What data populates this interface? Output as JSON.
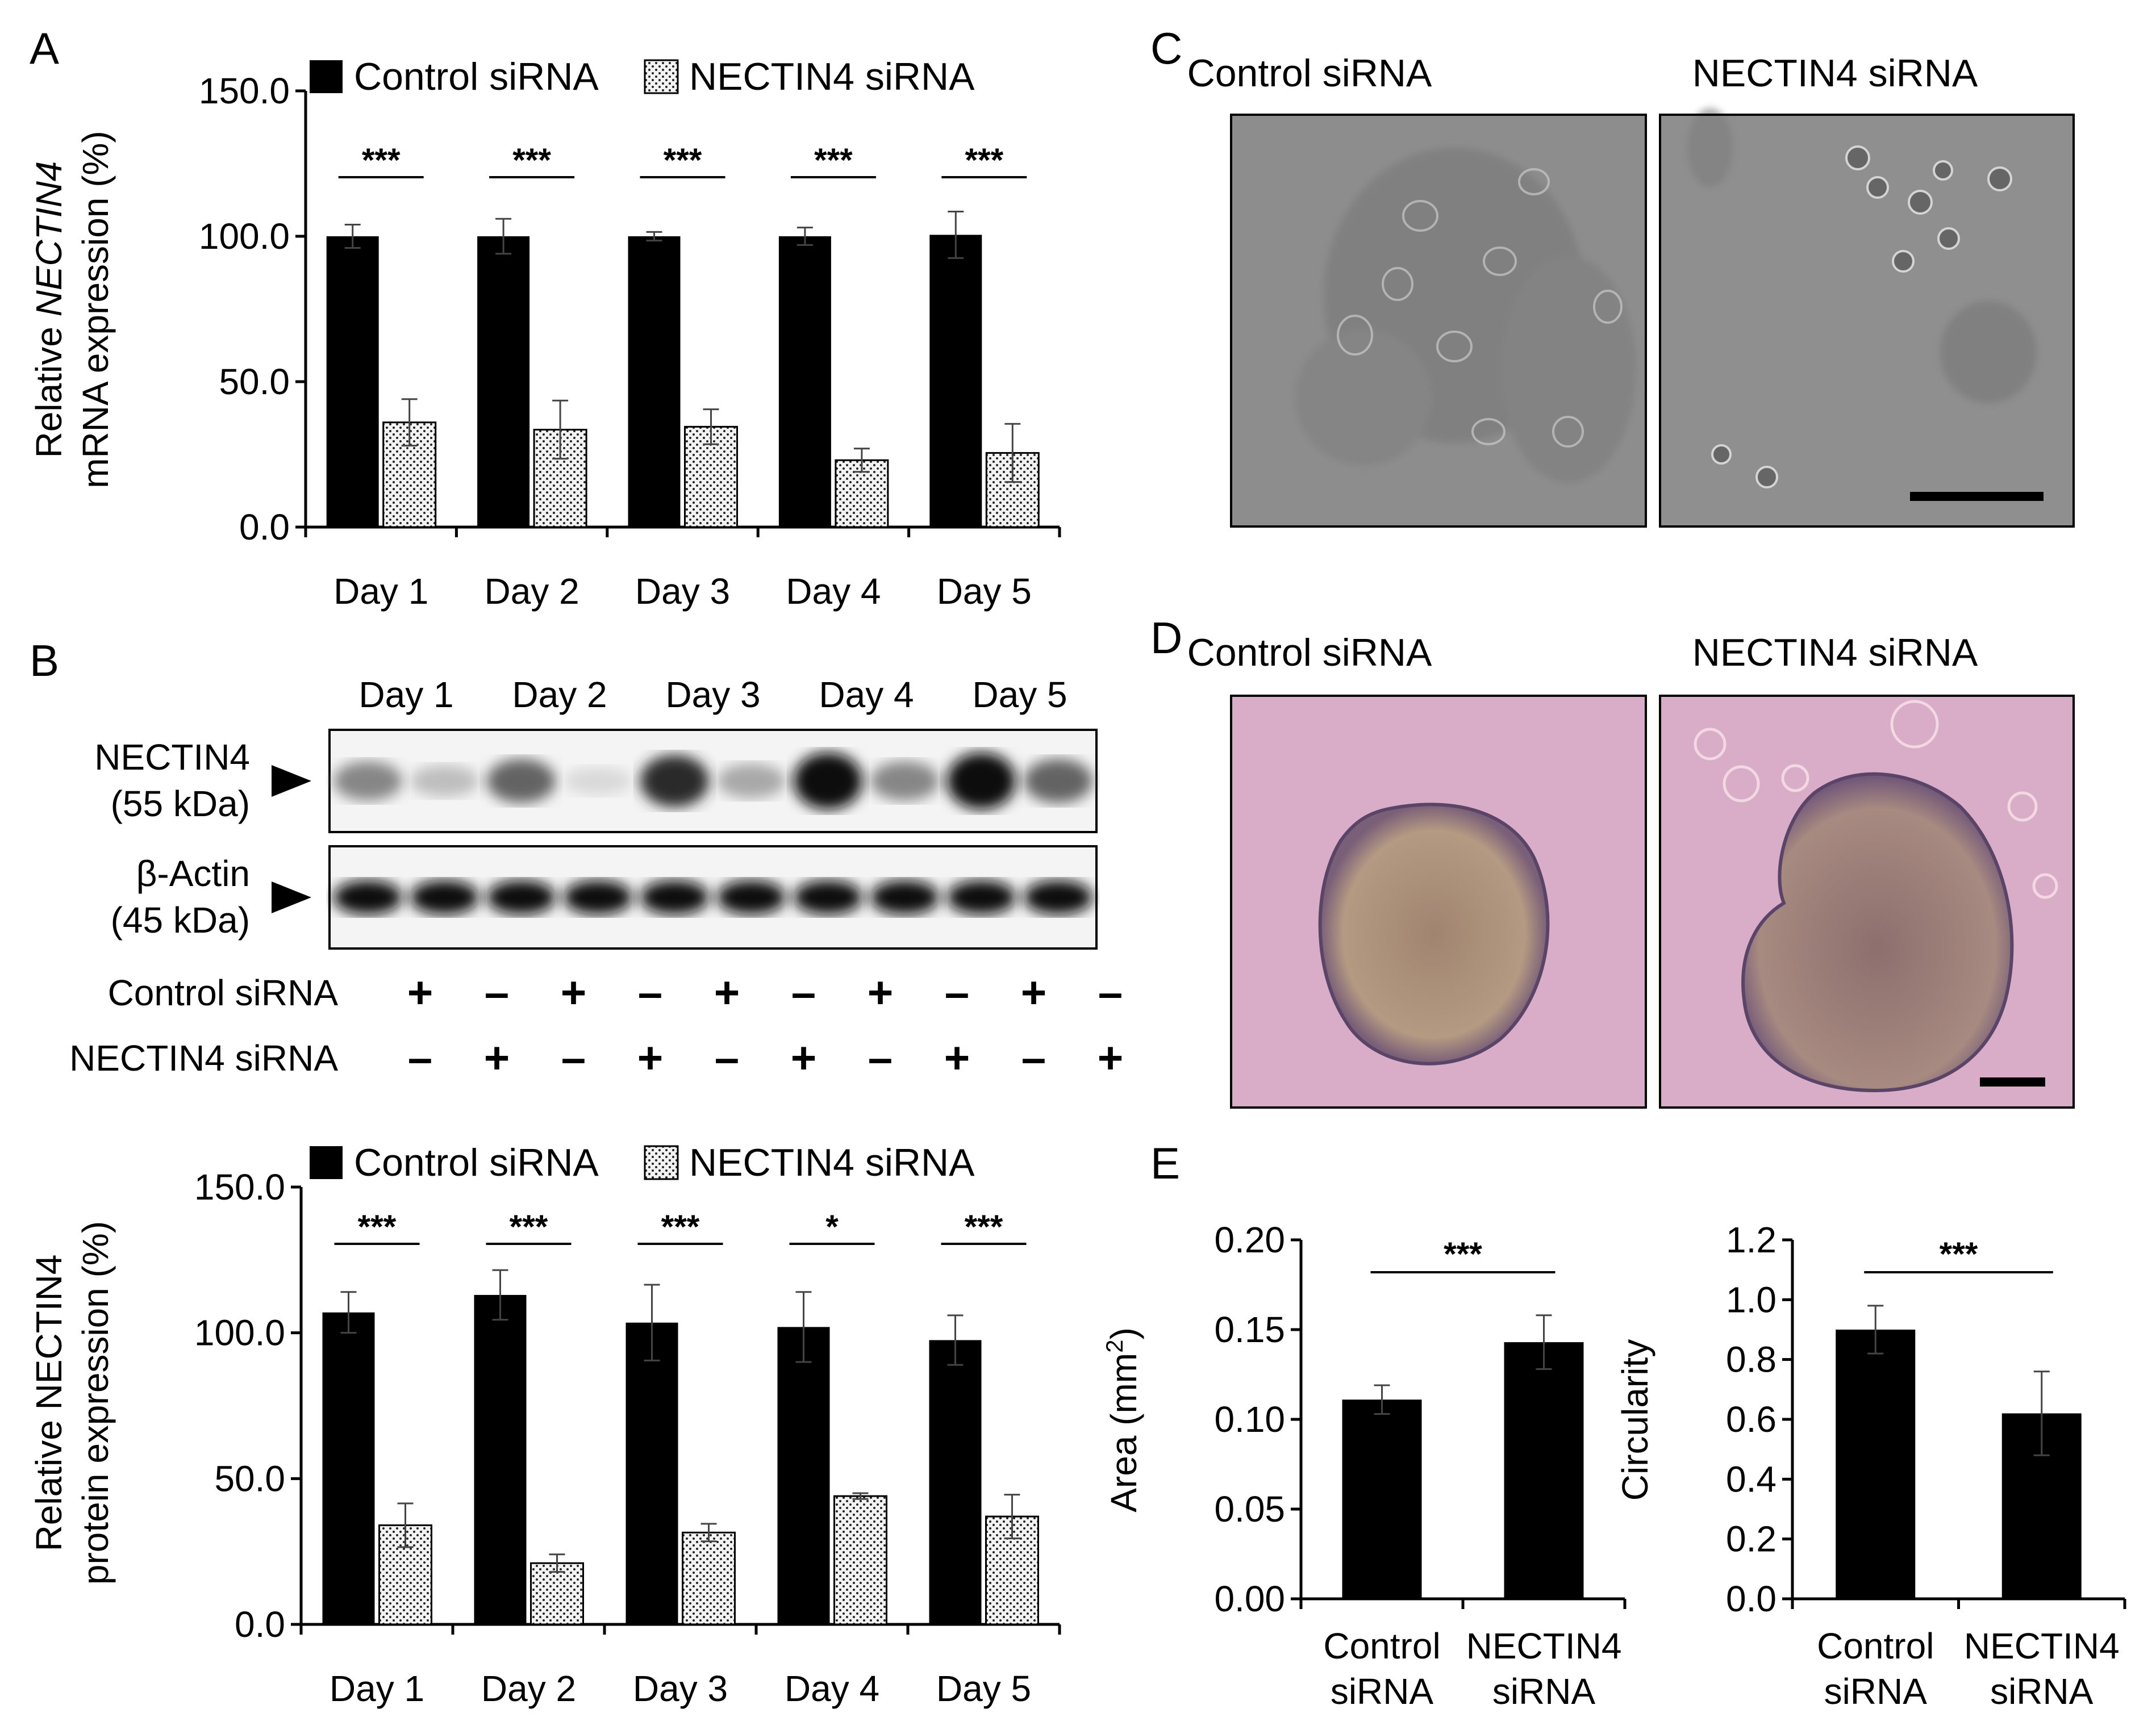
{
  "figure": {
    "panel_letters": [
      "A",
      "B",
      "C",
      "D",
      "E"
    ]
  },
  "colors": {
    "control": "#000000",
    "nectin4_fill": "#f2f2f2",
    "micrograph_phase": "#8c8c8c",
    "micrograph_he": "#d8a8c8"
  },
  "chart_data": [
    {
      "id": "A",
      "type": "bar",
      "ylabel_parts": [
        "Relative ",
        "NECTIN4",
        "mRNA expression (%)"
      ],
      "categories": [
        "Day 1",
        "Day 2",
        "Day 3",
        "Day 4",
        "Day 5"
      ],
      "ylim": [
        0,
        150
      ],
      "yticks": [
        "0.0",
        "50.0",
        "100.0",
        "150.0"
      ],
      "legend": [
        "Control siRNA",
        "NECTIN4 siRNA"
      ],
      "series": [
        {
          "name": "Control siRNA",
          "values": [
            100,
            100,
            100,
            100,
            100.5
          ],
          "errors": [
            4,
            6,
            1.5,
            3,
            8
          ]
        },
        {
          "name": "NECTIN4 siRNA",
          "values": [
            36,
            33.5,
            34.5,
            23,
            25.5
          ],
          "errors": [
            8,
            10,
            6,
            4,
            10
          ]
        }
      ],
      "significance": [
        "***",
        "***",
        "***",
        "***",
        "***"
      ]
    },
    {
      "id": "B_quant",
      "type": "bar",
      "ylabel_lines": [
        "Relative NECTIN4",
        "protein expression (%)"
      ],
      "categories": [
        "Day 1",
        "Day 2",
        "Day 3",
        "Day 4",
        "Day 5"
      ],
      "ylim": [
        0,
        150
      ],
      "yticks": [
        "0.0",
        "50.0",
        "100.0",
        "150.0"
      ],
      "legend": [
        "Control siRNA",
        "NECTIN4 siRNA"
      ],
      "series": [
        {
          "name": "Control siRNA",
          "values": [
            107,
            113,
            103.5,
            102,
            97.5
          ],
          "errors": [
            7,
            8.5,
            13,
            12,
            8.5
          ]
        },
        {
          "name": "NECTIN4 siRNA",
          "values": [
            34,
            21,
            31.5,
            44,
            37
          ],
          "errors": [
            7.5,
            3,
            3,
            1,
            7.5
          ]
        }
      ],
      "significance": [
        "***",
        "***",
        "***",
        "*",
        "***"
      ]
    },
    {
      "id": "E_area",
      "type": "bar",
      "ylabel": "Area (mm",
      "ylabel_sup": "2",
      "ylabel_close": ")",
      "categories": [
        [
          "Control",
          "siRNA"
        ],
        [
          "NECTIN4",
          "siRNA"
        ]
      ],
      "ylim": [
        0,
        0.2
      ],
      "yticks": [
        "0.00",
        "0.05",
        "0.10",
        "0.15",
        "0.20"
      ],
      "values": [
        0.111,
        0.143
      ],
      "errors": [
        0.008,
        0.015
      ],
      "significance": "***"
    },
    {
      "id": "E_circ",
      "type": "bar",
      "ylabel": "Circularity",
      "categories": [
        [
          "Control",
          "siRNA"
        ],
        [
          "NECTIN4",
          "siRNA"
        ]
      ],
      "ylim": [
        0,
        1.2
      ],
      "yticks": [
        "0.0",
        "0.2",
        "0.4",
        "0.6",
        "0.8",
        "1.0",
        "1.2"
      ],
      "values": [
        0.9,
        0.62
      ],
      "errors": [
        0.08,
        0.14
      ],
      "significance": "***"
    }
  ],
  "western_blot": {
    "day_labels": [
      "Day 1",
      "Day 2",
      "Day 3",
      "Day 4",
      "Day 5"
    ],
    "bands": [
      {
        "name_line1": "NECTIN4",
        "name_line2": "(55 kDa)",
        "intensities": [
          0.45,
          0.2,
          0.6,
          0.08,
          0.85,
          0.3,
          1.0,
          0.45,
          1.0,
          0.6
        ]
      },
      {
        "name_line1": "β-Actin",
        "name_line2": "(45 kDa)",
        "intensities": [
          1,
          1,
          1,
          1,
          1,
          1,
          1,
          1,
          1,
          1
        ]
      }
    ],
    "rows": [
      {
        "label": "Control siRNA",
        "signs": [
          "+",
          "–",
          "+",
          "–",
          "+",
          "–",
          "+",
          "–",
          "+",
          "–"
        ]
      },
      {
        "label": "NECTIN4 siRNA",
        "signs": [
          "–",
          "+",
          "–",
          "+",
          "–",
          "+",
          "–",
          "+",
          "–",
          "+"
        ]
      }
    ]
  },
  "micrographs": {
    "C_titles": [
      "Control siRNA",
      "NECTIN4 siRNA"
    ],
    "D_titles": [
      "Control siRNA",
      "NECTIN4 siRNA"
    ]
  }
}
